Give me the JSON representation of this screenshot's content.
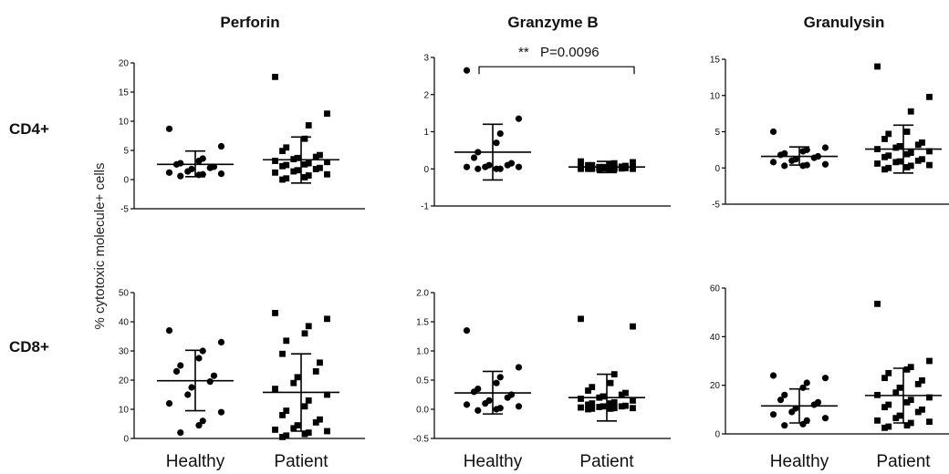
{
  "figure": {
    "y_axis_label": "% cytotoxic molecule+ cells",
    "column_titles": [
      "Perforin",
      "Granzyme B",
      "Granulysin"
    ],
    "row_labels": [
      "CD4+",
      "CD8+"
    ],
    "annotation": {
      "stars": "**",
      "text": "P=0.0096"
    }
  },
  "chart_data": [
    {
      "type": "scatter",
      "row": "CD4+",
      "title": "Perforin",
      "categories": [
        "Healthy",
        "Patient"
      ],
      "show_categories": false,
      "ylim": [
        -5,
        20
      ],
      "yticks": [
        -5,
        0,
        5,
        10,
        15,
        20
      ],
      "series": [
        {
          "name": "Healthy",
          "marker": "circle",
          "mean": 2.6,
          "sd_low": 0.5,
          "sd_high": 4.9,
          "values": [
            8.7,
            5.7,
            3.6,
            3.2,
            2.8,
            2.6,
            2.2,
            2.0,
            1.8,
            1.4,
            1.2,
            1.0,
            0.8,
            0.6,
            0.9
          ]
        },
        {
          "name": "Patient",
          "marker": "square",
          "mean": 3.4,
          "sd_low": -0.6,
          "sd_high": 7.3,
          "values": [
            17.6,
            11.3,
            9.3,
            7.0,
            5.5,
            4.9,
            4.2,
            3.9,
            3.7,
            3.5,
            3.2,
            3.0,
            2.8,
            2.6,
            2.5,
            2.3,
            2.0,
            1.8,
            1.6,
            1.4,
            1.2,
            0.9,
            0.7,
            0.4,
            0.2,
            0.0
          ]
        }
      ]
    },
    {
      "type": "scatter",
      "row": "CD4+",
      "title": "Granzyme B",
      "categories": [
        "Healthy",
        "Patient"
      ],
      "show_categories": false,
      "ylim": [
        -1,
        3
      ],
      "yticks": [
        -1,
        0,
        1,
        2,
        3
      ],
      "series": [
        {
          "name": "Healthy",
          "marker": "circle",
          "mean": 0.45,
          "sd_low": -0.3,
          "sd_high": 1.2,
          "values": [
            2.65,
            1.35,
            0.95,
            0.7,
            0.45,
            0.3,
            0.15,
            0.1,
            0.05,
            0.05,
            0.0,
            0.0,
            0.0,
            0.05,
            0.1
          ]
        },
        {
          "name": "Patient",
          "marker": "square",
          "mean": 0.05,
          "sd_low": -0.1,
          "sd_high": 0.2,
          "values": [
            0.2,
            0.18,
            0.15,
            0.12,
            0.1,
            0.1,
            0.08,
            0.06,
            0.05,
            0.05,
            0.04,
            0.03,
            0.02,
            0.02,
            0.01,
            0.0,
            0.0,
            0.0,
            0.0,
            0.0,
            0.0,
            0.0,
            0.01,
            0.02,
            0.03,
            0.05
          ]
        }
      ],
      "significance": {
        "between": [
          "Healthy",
          "Patient"
        ],
        "y": 2.75
      }
    },
    {
      "type": "scatter",
      "row": "CD4+",
      "title": "Granulysin",
      "categories": [
        "Healthy",
        "Patient"
      ],
      "show_categories": false,
      "ylim": [
        -5,
        15
      ],
      "yticks": [
        -5,
        0,
        5,
        10,
        15
      ],
      "series": [
        {
          "name": "Healthy",
          "marker": "circle",
          "mean": 1.6,
          "sd_low": 0.4,
          "sd_high": 2.9,
          "values": [
            5.0,
            2.8,
            2.5,
            2.3,
            2.0,
            1.8,
            1.6,
            1.4,
            1.2,
            1.0,
            0.8,
            0.5,
            0.4,
            0.3,
            0.3
          ]
        },
        {
          "name": "Patient",
          "marker": "square",
          "mean": 2.6,
          "sd_low": -0.7,
          "sd_high": 5.9,
          "values": [
            14.0,
            9.8,
            7.8,
            5.0,
            4.7,
            4.0,
            3.5,
            3.2,
            3.0,
            2.8,
            2.6,
            2.3,
            2.1,
            1.9,
            1.7,
            1.5,
            1.2,
            0.9,
            0.6,
            0.3,
            0.1,
            0.0,
            -0.2,
            0.4,
            0.8,
            1.0
          ]
        }
      ]
    },
    {
      "type": "scatter",
      "row": "CD8+",
      "title": "Perforin",
      "categories": [
        "Healthy",
        "Patient"
      ],
      "show_categories": true,
      "ylim": [
        0,
        50
      ],
      "yticks": [
        0,
        10,
        20,
        30,
        40,
        50
      ],
      "series": [
        {
          "name": "Healthy",
          "marker": "circle",
          "mean": 19.8,
          "sd_low": 9.5,
          "sd_high": 30.2,
          "values": [
            37.0,
            33.0,
            30.0,
            27.5,
            25.0,
            23.0,
            21.5,
            19.5,
            17.5,
            15.0,
            12.0,
            9.0,
            6.0,
            4.5,
            2.0
          ]
        },
        {
          "name": "Patient",
          "marker": "square",
          "mean": 15.8,
          "sd_low": 2.5,
          "sd_high": 29.0,
          "values": [
            43.0,
            41.0,
            38.5,
            36.0,
            33.5,
            29.0,
            26.0,
            23.0,
            21.0,
            19.0,
            17.0,
            15.0,
            13.0,
            11.0,
            9.5,
            8.0,
            6.5,
            5.5,
            4.5,
            3.5,
            3.0,
            2.5,
            2.0,
            1.5,
            1.0,
            0.5
          ]
        }
      ]
    },
    {
      "type": "scatter",
      "row": "CD8+",
      "title": "Granzyme B",
      "categories": [
        "Healthy",
        "Patient"
      ],
      "show_categories": true,
      "ylim": [
        -0.5,
        2.0
      ],
      "yticks": [
        -0.5,
        0.0,
        0.5,
        1.0,
        1.5,
        2.0
      ],
      "series": [
        {
          "name": "Healthy",
          "marker": "circle",
          "mean": 0.28,
          "sd_low": -0.08,
          "sd_high": 0.65,
          "values": [
            1.35,
            0.72,
            0.55,
            0.45,
            0.35,
            0.3,
            0.25,
            0.2,
            0.15,
            0.1,
            0.05,
            0.02,
            0.0,
            -0.02,
            0.08
          ]
        },
        {
          "name": "Patient",
          "marker": "square",
          "mean": 0.2,
          "sd_low": -0.2,
          "sd_high": 0.6,
          "values": [
            1.55,
            1.42,
            0.6,
            0.45,
            0.38,
            0.32,
            0.28,
            0.25,
            0.22,
            0.2,
            0.18,
            0.15,
            0.12,
            0.1,
            0.08,
            0.06,
            0.05,
            0.04,
            0.03,
            0.02,
            0.02,
            0.01,
            0.01,
            0.0,
            0.05,
            0.1
          ]
        }
      ]
    },
    {
      "type": "scatter",
      "row": "CD8+",
      "title": "Granulysin",
      "categories": [
        "Healthy",
        "Patient"
      ],
      "show_categories": true,
      "ylim": [
        0,
        60
      ],
      "yticks": [
        0,
        20,
        40,
        60
      ],
      "series": [
        {
          "name": "Healthy",
          "marker": "circle",
          "mean": 11.5,
          "sd_low": 4.5,
          "sd_high": 18.5,
          "values": [
            24.0,
            23.0,
            21.0,
            19.0,
            16.0,
            14.0,
            13.0,
            12.0,
            10.5,
            9.0,
            8.0,
            6.5,
            5.5,
            4.0,
            3.5
          ]
        },
        {
          "name": "Patient",
          "marker": "square",
          "mean": 15.8,
          "sd_low": 4.5,
          "sd_high": 27.0,
          "values": [
            53.5,
            30.0,
            27.5,
            26.5,
            25.0,
            23.0,
            22.0,
            20.5,
            19.0,
            17.0,
            16.0,
            15.0,
            14.0,
            13.0,
            12.0,
            11.0,
            10.0,
            9.0,
            7.5,
            6.5,
            5.5,
            5.0,
            4.5,
            3.5,
            3.0,
            2.5
          ]
        }
      ]
    }
  ]
}
